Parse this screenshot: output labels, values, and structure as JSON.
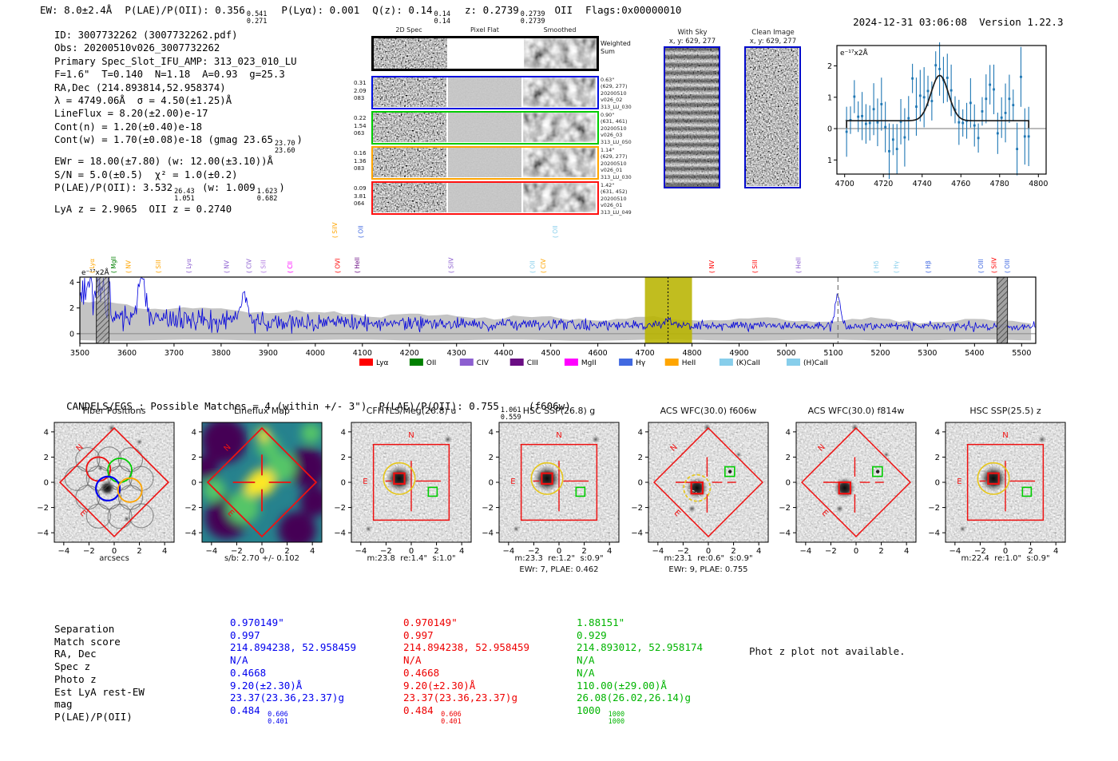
{
  "header": {
    "ew": "EW: 8.0±2.4Å",
    "plae_label": "P(LAE)/P(OII): 0.356",
    "plae_sup": "0.541",
    "plae_sub": "0.271",
    "plya": "P(Lyα): 0.001",
    "qz_label": "Q(z): 0.14",
    "qz_sup": "0.14",
    "qz_sub": "0.14",
    "z_label": "z: 0.2739",
    "z_sup": "0.2739",
    "z_sub": "0.2739",
    "z_line": "OII",
    "flags": "Flags:0x00000010",
    "timestamp": "2024-12-31 03:06:08",
    "version": "Version 1.22.3"
  },
  "info": {
    "lines": [
      [
        {
          "t": "ID: 3007732262 (3007732262.pdf)"
        }
      ],
      [
        {
          "t": "Obs: 20200510v026_3007732262"
        }
      ],
      [
        {
          "t": "Primary Spec_Slot_IFU_AMP: 313_023_010_LU"
        }
      ],
      [
        {
          "t": "F=1.6\"  T=0.140  N=1.18  A=0.93  g=25.3"
        }
      ],
      [
        {
          "t": "RA,Dec (214.893814,52.958374)"
        }
      ],
      [
        {
          "t": "λ = 4749.06Å  σ = 4.50(±1.25)Å"
        }
      ],
      [
        {
          "t": "LineFlux = 8.20(±2.00)e-17"
        }
      ],
      [
        {
          "t": "Cont(n) = 1.20(±0.40)e-18"
        }
      ],
      [
        {
          "t": "Cont(w) = 1.70(±0.08)e-18 (gmag 23.65"
        },
        {
          "sup": "23.70",
          "sub": "23.60"
        },
        {
          "t": ")"
        }
      ],
      [
        {
          "t": "EWr = 18.00(±7.80) (w: 12.00(±3.10))Å"
        }
      ],
      [
        {
          "t": "S/N = 5.0(±0.5)  χ² = 1.0(±0.2)"
        }
      ],
      [
        {
          "t": "P(LAE)/P(OII): 3.532"
        },
        {
          "sup": "26.43",
          "sub": "1.051"
        },
        {
          "t": " (w: 1.009"
        },
        {
          "sup": "1.623",
          "sub": "0.682"
        },
        {
          "t": ")"
        }
      ],
      [
        {
          "t": "LyA z = 2.9065  OII z = 0.2740"
        }
      ]
    ]
  },
  "spec2d": {
    "col_titles": [
      "2D Spec",
      "Pixel Flat",
      "Smoothed"
    ],
    "weighted": [
      "Weighted",
      "Sum"
    ],
    "rows": [
      {
        "color": "#0010e0",
        "left": [
          "0.31",
          "2.09",
          "083"
        ],
        "right": [
          "0.63\"",
          "(629, 277)",
          "20200510",
          "v026_02",
          "313_LU_030"
        ]
      },
      {
        "color": "#00cc00",
        "left": [
          "0.22",
          "1.54",
          "063"
        ],
        "right": [
          "0.90\"",
          "(631, 461)",
          "20200510",
          "v026_03",
          "313_LU_050"
        ]
      },
      {
        "color": "#ffa500",
        "left": [
          "0.16",
          "1.36",
          "083"
        ],
        "right": [
          "1.14\"",
          "(629, 277)",
          "20200510",
          "v026_01",
          "313_LU_030"
        ]
      },
      {
        "color": "#ff1010",
        "left": [
          "0.09",
          "3.81",
          "064"
        ],
        "right": [
          "1.42\"",
          "(631, 452)",
          "20200510",
          "v026_01",
          "313_LU_049"
        ]
      }
    ]
  },
  "stamps": {
    "with_sky_title1": "With Sky",
    "with_sky_title2": "x, y: 629, 277",
    "clean_title1": "Clean Image",
    "clean_title2": "x, y: 629, 277"
  },
  "chart_data": [
    {
      "id": "line_fit_plot",
      "type": "scatter",
      "unit_label": "e⁻¹⁷x2Å",
      "xlim": [
        4696,
        4804
      ],
      "ylim": [
        -1.45,
        2.65
      ],
      "xticks": [
        4700,
        4720,
        4740,
        4760,
        4780,
        4800
      ],
      "yticks": [
        -1,
        0,
        1,
        2
      ],
      "x_start": 4701,
      "x_step": 2,
      "y": [
        -0.1,
        0.27,
        1.02,
        0.38,
        0.4,
        0.15,
        0.18,
        0.62,
        0.2,
        0.78,
        0.05,
        -0.72,
        -0.35,
        -0.65,
        0.22,
        -0.28,
        0.33,
        1.6,
        0.7,
        1.05,
        1.0,
        1.2,
        0.88,
        2.02,
        1.9,
        1.55,
        1.62,
        1.22,
        0.6,
        0.2,
        0.18,
        0.25,
        0.82,
        0.1,
        -0.3,
        0.55,
        0.95,
        1.4,
        1.25,
        -0.15,
        0.35,
        0.5,
        0.95,
        0.75,
        -0.65,
        1.65,
        -0.25,
        -0.25
      ],
      "yerr_typical": 0.65,
      "fit": {
        "center": 4749.06,
        "sigma": 4.5,
        "amplitude": 1.45,
        "continuum": 0.25,
        "x_start": 4701,
        "x_end": 4795
      },
      "point_color": "#1f77b4",
      "fit_color": "#1a1a1a"
    },
    {
      "id": "full_spectrum",
      "type": "line",
      "unit_label": "e⁻¹⁷x2Å",
      "xlim": [
        3500,
        5530
      ],
      "ylim": [
        -0.75,
        4.4
      ],
      "xticks": [
        3500,
        3600,
        3700,
        3800,
        3900,
        4000,
        4100,
        4200,
        4300,
        4400,
        4500,
        4600,
        4700,
        4800,
        4900,
        5000,
        5100,
        5200,
        5300,
        5400,
        5500
      ],
      "yticks": [
        0,
        2,
        4
      ],
      "line_color": "#0000dd",
      "error_band_color": "#c4c4c4",
      "highlight_band": {
        "x0": 4700,
        "x1": 4800,
        "color": "#b8b400"
      },
      "detect_line": {
        "x": 4749.06,
        "style": "dotted"
      },
      "sky_line": {
        "x": 5110,
        "style": "dashed"
      },
      "masked_bands": [
        [
          3535,
          3562
        ],
        [
          5448,
          5470
        ]
      ],
      "legend": [
        {
          "label": "Lyα",
          "color": "#ff0000"
        },
        {
          "label": "OII",
          "color": "#008000"
        },
        {
          "label": "CIV",
          "color": "#8c5fd0"
        },
        {
          "label": "CIII",
          "color": "#6a0d83"
        },
        {
          "label": "MgII",
          "color": "#ff00ff"
        },
        {
          "label": "Hγ",
          "color": "#4169e1"
        },
        {
          "label": "HeII",
          "color": "#ffa500"
        },
        {
          "label": "(K)CaII",
          "color": "#87ceeb"
        },
        {
          "label": "(H)CaII",
          "color": "#87ceeb"
        }
      ],
      "line_labels": [
        {
          "text": "Lyα",
          "wave": 3525,
          "color": "#ffa500",
          "row": 0
        },
        {
          "text": "MgII",
          "wave": 3570,
          "color": "#008000",
          "row": 0
        },
        {
          "text": "NV",
          "wave": 3602,
          "color": "#ffa500",
          "row": 0
        },
        {
          "text": "SiII",
          "wave": 3665,
          "color": "#ffa500",
          "row": 0
        },
        {
          "text": "Lyα",
          "wave": 3730,
          "color": "#8c5fd0",
          "row": 0
        },
        {
          "text": "NV",
          "wave": 3810,
          "color": "#8c5fd0",
          "row": 0
        },
        {
          "text": "CIV",
          "wave": 3858,
          "color": "#8c5fd0",
          "row": 0
        },
        {
          "text": "SiII",
          "wave": 3888,
          "color": "#b07ae0",
          "row": 0
        },
        {
          "text": "CII",
          "wave": 3945,
          "color": "#ff00ff",
          "row": 0
        },
        {
          "text": "SiIV",
          "wave": 4040,
          "color": "#ffa500",
          "row": 1
        },
        {
          "text": "OVI",
          "wave": 4046,
          "color": "#ff0000",
          "row": 0
        },
        {
          "text": "OII",
          "wave": 4095,
          "color": "#4169e1",
          "row": 1
        },
        {
          "text": "HeII",
          "wave": 4088,
          "color": "#6a0d83",
          "row": 0
        },
        {
          "text": "SiIV",
          "wave": 4287,
          "color": "#8c5fd0",
          "row": 0
        },
        {
          "text": "OII",
          "wave": 4460,
          "color": "#87ceeb",
          "row": 0
        },
        {
          "text": "CIV",
          "wave": 4483,
          "color": "#ffa500",
          "row": 0
        },
        {
          "text": "OII",
          "wave": 4508,
          "color": "#87ceeb",
          "row": 1
        },
        {
          "text": "NV",
          "wave": 4841,
          "color": "#ff0000",
          "row": 0
        },
        {
          "text": "SiII",
          "wave": 4932,
          "color": "#ff0000",
          "row": 0
        },
        {
          "text": "HeII",
          "wave": 5025,
          "color": "#8c5fd0",
          "row": 0
        },
        {
          "text": "Hδ",
          "wave": 5190,
          "color": "#87ceeb",
          "row": 0
        },
        {
          "text": "Hγ",
          "wave": 5232,
          "color": "#87ceeb",
          "row": 0
        },
        {
          "text": "Hβ",
          "wave": 5300,
          "color": "#4169e1",
          "row": 0
        },
        {
          "text": "OIII",
          "wave": 5412,
          "color": "#4169e1",
          "row": 0
        },
        {
          "text": "SiIV",
          "wave": 5440,
          "color": "#ff0000",
          "row": 0
        },
        {
          "text": "OIII",
          "wave": 5468,
          "color": "#4169e1",
          "row": 0
        }
      ]
    }
  ],
  "candels": {
    "main": "CANDELS/EGS : Possible Matches = 4 (within +/- 3\")  P(LAE)/P(OII): 0.755",
    "sup": "1.061",
    "sub": "0.559",
    "suffix": " (f606w)"
  },
  "cutouts": [
    {
      "title": "Fiber Positions",
      "xlabel": "arcsecs",
      "sub": "",
      "type": "fiber"
    },
    {
      "title": "Lineflux Map",
      "xlabel": "s/b: 2.70 +/- 0.102",
      "sub": "",
      "type": "lineflux"
    },
    {
      "title": "CFHTLS/Meg(26.8) u",
      "xlabel": "m:23.8  re:1.4\"  s:1.0\"",
      "sub": "",
      "type": "box"
    },
    {
      "title": "HSC SSP(26.8) g",
      "xlabel": "m:23.3  re:1.2\"  s:0.9\"",
      "sub": "EWr: 7, PLAE: 0.462",
      "type": "box"
    },
    {
      "title": "ACS WFC(30.0) f606w",
      "xlabel": "m:23.1  re:0.6\"  s:0.9\"",
      "sub": "EWr: 9, PLAE: 0.755",
      "type": "diamond",
      "dashed_circles": true,
      "yellow_dashed": true
    },
    {
      "title": "ACS WFC(30.0) f814w",
      "xlabel": "",
      "sub": "",
      "type": "diamond",
      "white_square": true
    },
    {
      "title": "HSC SSP(25.5) z",
      "xlabel": "m:22.4  re:1.0\"  s:0.9\"",
      "sub": "",
      "type": "box"
    }
  ],
  "cutout_axis": {
    "ticks": [
      "−4",
      "−2",
      "0",
      "2",
      "4"
    ],
    "values": [
      -4,
      -2,
      0,
      2,
      4
    ]
  },
  "match_table": {
    "row_labels": [
      "Separation",
      "Match score",
      "RA, Dec",
      "Spec z",
      "Photo z",
      "Est LyA rest-EW",
      "mag",
      "P(LAE)/P(OII)"
    ],
    "columns": [
      {
        "color": "#0000ee",
        "values": [
          "0.970149\"",
          "0.997",
          "214.894238, 52.958459",
          "N/A",
          "0.4668",
          "9.20(±2.30)Å",
          "23.37(23.36,23.37)g"
        ],
        "plae_main": "0.484",
        "plae_sup": "0.606",
        "plae_sub": "0.401"
      },
      {
        "color": "#ee0000",
        "values": [
          "0.970149\"",
          "0.997",
          "214.894238, 52.958459",
          "N/A",
          "0.4668",
          "9.20(±2.30)Å",
          "23.37(23.36,23.37)g"
        ],
        "plae_main": "0.484",
        "plae_sup": "0.606",
        "plae_sub": "0.401"
      },
      {
        "color": "#00b400",
        "values": [
          "1.88151\"",
          "0.929",
          "214.893012, 52.958174",
          "N/A",
          "N/A",
          "110.00(±29.00)Å",
          "26.08(26.02,26.14)g"
        ],
        "plae_main": "1000",
        "plae_sup": "1000",
        "plae_sub": "1000"
      }
    ],
    "note": "Phot z plot not available."
  }
}
